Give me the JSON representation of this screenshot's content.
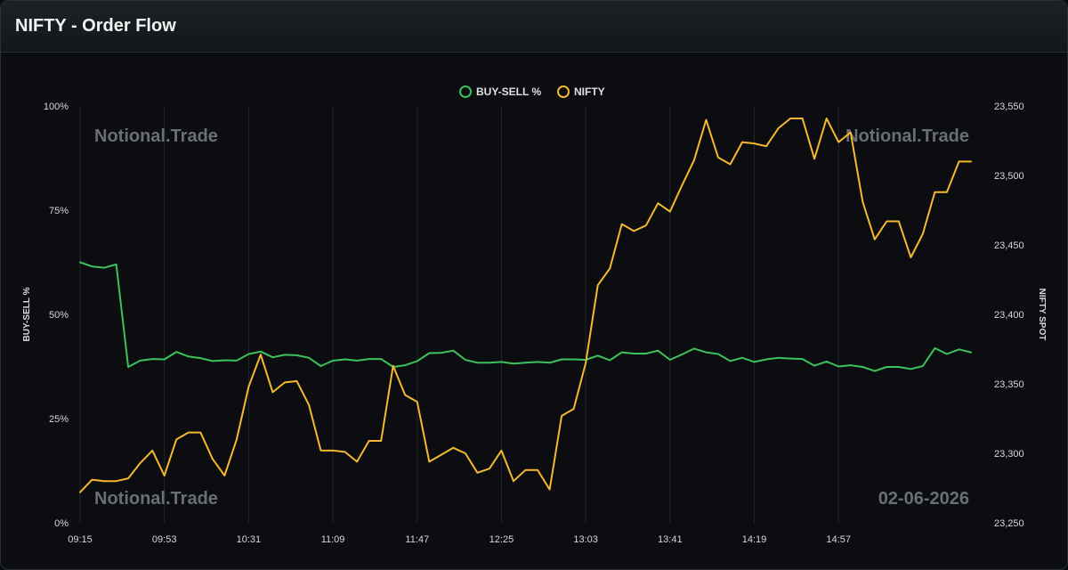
{
  "header": {
    "title": "NIFTY - Order Flow"
  },
  "watermarks": {
    "top_left": "Notional.Trade",
    "top_right": "Notional.Trade",
    "bottom_left": "Notional.Trade",
    "date": "02-06-2026"
  },
  "chart_data": {
    "type": "line",
    "x_tick_labels": [
      "09:15",
      "09:53",
      "10:31",
      "11:09",
      "11:47",
      "12:25",
      "13:03",
      "13:41",
      "14:19",
      "14:57"
    ],
    "y_left": {
      "label": "BUY-SELL %",
      "ticks": [
        "0%",
        "25%",
        "50%",
        "75%",
        "100%"
      ],
      "range": [
        0,
        100
      ]
    },
    "y_right": {
      "label": "NIFTY SPOT",
      "ticks": [
        "23,250",
        "23,300",
        "23,350",
        "23,400",
        "23,450",
        "23,500",
        "23,550"
      ],
      "range": [
        23250,
        23550
      ]
    },
    "grid": "vertical",
    "legend_position": "top-center",
    "series": [
      {
        "name": "BUY-SELL %",
        "axis": "left",
        "color": "#3cc25a",
        "values": [
          62.5,
          61.5,
          61.2,
          62.0,
          37.4,
          38.9,
          39.3,
          39.2,
          41.0,
          39.9,
          39.5,
          38.8,
          39.0,
          38.9,
          40.5,
          41.1,
          39.7,
          40.3,
          40.2,
          39.6,
          37.6,
          38.9,
          39.2,
          38.9,
          39.3,
          39.3,
          37.4,
          37.8,
          38.8,
          40.7,
          40.8,
          41.3,
          39.1,
          38.4,
          38.4,
          38.6,
          38.2,
          38.4,
          38.6,
          38.4,
          39.2,
          39.2,
          39.1,
          40.1,
          39.0,
          40.9,
          40.6,
          40.6,
          41.3,
          39.1,
          40.4,
          41.8,
          40.9,
          40.5,
          38.8,
          39.6,
          38.6,
          39.2,
          39.6,
          39.4,
          39.3,
          37.7,
          38.7,
          37.5,
          37.8,
          37.4,
          36.4,
          37.4,
          37.4,
          36.9,
          37.6,
          41.9,
          40.5,
          41.6,
          40.9
        ]
      },
      {
        "name": "NIFTY",
        "axis": "right",
        "color": "#f5b82e",
        "values": [
          23272,
          23281,
          23280,
          23280,
          23282,
          23293,
          23302,
          23284,
          23310,
          23315,
          23315,
          23296,
          23284,
          23310,
          23348,
          23371,
          23344,
          23351,
          23352,
          23335,
          23302,
          23302,
          23301,
          23294,
          23309,
          23309,
          23363,
          23342,
          23337,
          23294,
          23299,
          23304,
          23300,
          23286,
          23289,
          23302,
          23280,
          23288,
          23288,
          23274,
          23327,
          23332,
          23365,
          23421,
          23433,
          23465,
          23460,
          23464,
          23480,
          23474,
          23493,
          23511,
          23540,
          23513,
          23508,
          23524,
          23523,
          23521,
          23534,
          23541,
          23541,
          23512,
          23541,
          23524,
          23531,
          23481,
          23454,
          23467,
          23467,
          23441,
          23458,
          23488,
          23488,
          23510,
          23510
        ]
      }
    ]
  }
}
